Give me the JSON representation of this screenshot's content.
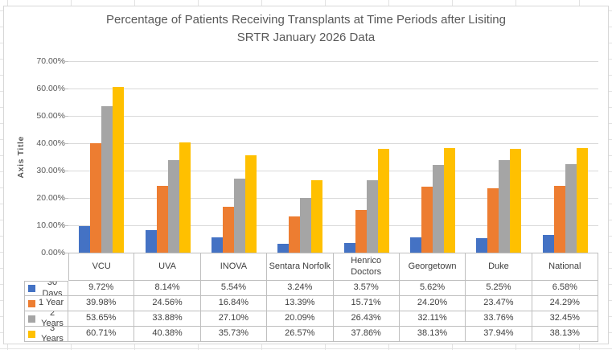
{
  "chart": {
    "title_line1": "Percentage of Patients Receiving Transplants at Time Periods after Lisiting",
    "title_line2": "SRTR January 2026 Data",
    "y_axis_title": "Axis Title"
  },
  "chart_data": {
    "type": "bar",
    "title": "Percentage of Patients Receiving Transplants at Time Periods after Lisiting SRTR January 2026 Data",
    "categories": [
      "VCU",
      "UVA",
      "INOVA",
      "Sentara Norfolk",
      "Henrico Doctors",
      "Georgetown",
      "Duke",
      "National"
    ],
    "series": [
      {
        "name": "30 Days",
        "color": "#4472C4",
        "values": [
          9.72,
          8.14,
          5.54,
          3.24,
          3.57,
          5.62,
          5.25,
          6.58
        ],
        "display": [
          "9.72%",
          "8.14%",
          "5.54%",
          "3.24%",
          "3.57%",
          "5.62%",
          "5.25%",
          "6.58%"
        ]
      },
      {
        "name": "1 Year",
        "color": "#ED7D31",
        "values": [
          39.98,
          24.56,
          16.84,
          13.39,
          15.71,
          24.2,
          23.47,
          24.29
        ],
        "display": [
          "39.98%",
          "24.56%",
          "16.84%",
          "13.39%",
          "15.71%",
          "24.20%",
          "23.47%",
          "24.29%"
        ]
      },
      {
        "name": "2 Years",
        "color": "#A5A5A5",
        "values": [
          53.65,
          33.88,
          27.1,
          20.09,
          26.43,
          32.11,
          33.76,
          32.45
        ],
        "display": [
          "53.65%",
          "33.88%",
          "27.10%",
          "20.09%",
          "26.43%",
          "32.11%",
          "33.76%",
          "32.45%"
        ]
      },
      {
        "name": "3 Years",
        "color": "#FFC000",
        "values": [
          60.71,
          40.38,
          35.73,
          26.57,
          37.86,
          38.13,
          37.94,
          38.13
        ],
        "display": [
          "60.71%",
          "40.38%",
          "35.73%",
          "26.57%",
          "37.86%",
          "38.13%",
          "37.94%",
          "38.13%"
        ]
      }
    ],
    "xlabel": "",
    "ylabel": "Axis Title",
    "ylim": [
      0,
      70
    ],
    "ytick_step": 10,
    "ytick_labels": [
      "0.00%",
      "10.00%",
      "20.00%",
      "30.00%",
      "40.00%",
      "50.00%",
      "60.00%",
      "70.00%"
    ],
    "grid": true,
    "legend_position": "data-table-left",
    "has_data_table": true,
    "value_format": "0.00%"
  }
}
